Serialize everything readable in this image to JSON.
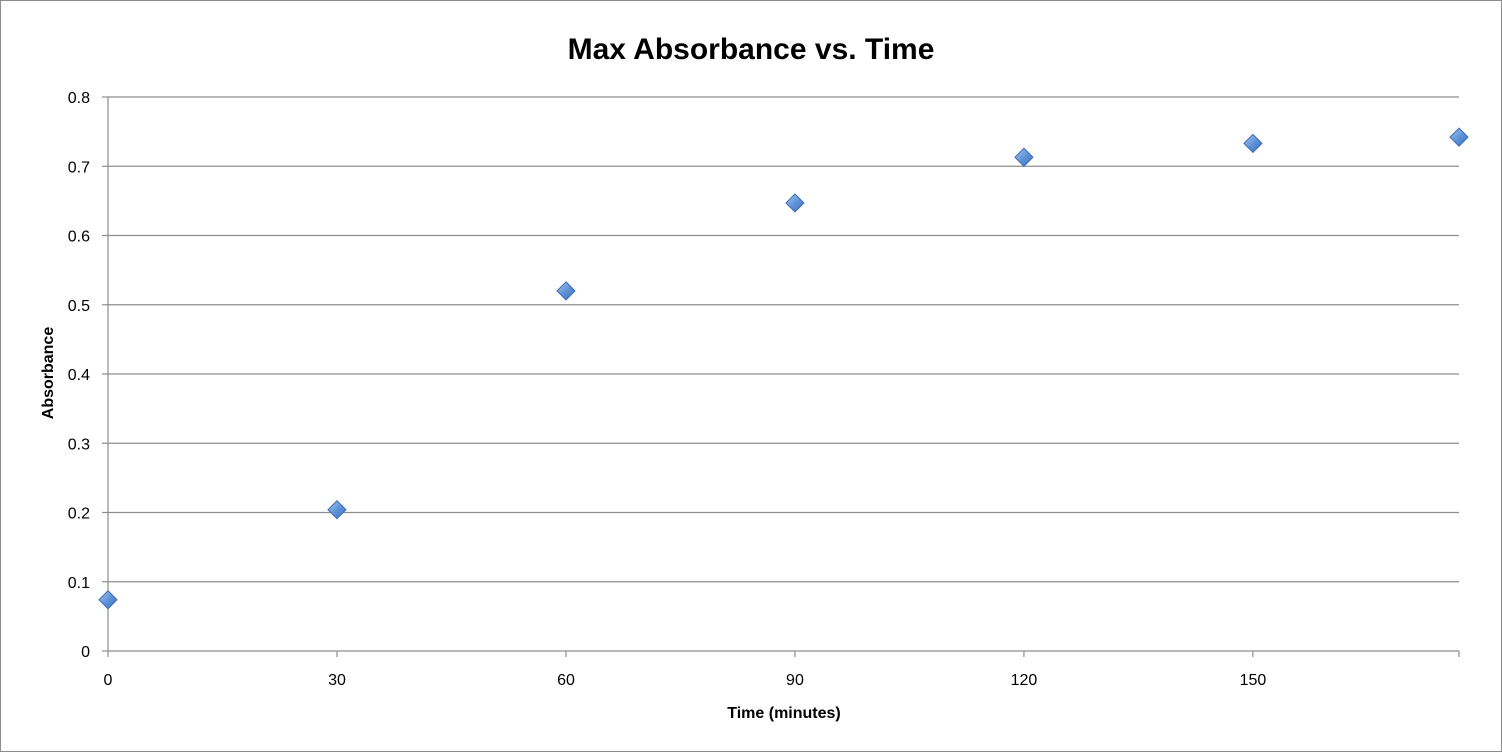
{
  "chart_data": {
    "type": "scatter",
    "title": "Max Absorbance vs. Time",
    "xlabel": "Time (minutes)",
    "ylabel": "Absorbance",
    "xlim": [
      0,
      177
    ],
    "ylim": [
      0,
      0.8
    ],
    "x_ticks": [
      0,
      30,
      60,
      90,
      120,
      150
    ],
    "x_tick_labels": [
      "0",
      "30",
      "60",
      "90",
      "120",
      "150"
    ],
    "y_ticks": [
      0,
      0.1,
      0.2,
      0.3,
      0.4,
      0.5,
      0.6,
      0.7,
      0.8
    ],
    "y_tick_labels": [
      "0",
      "0.1",
      "0.2",
      "0.3",
      "0.4",
      "0.5",
      "0.6",
      "0.7",
      "0.8"
    ],
    "grid": "horizontal",
    "legend": "none",
    "marker": "diamond",
    "marker_color": "#5b8fd6",
    "series": [
      {
        "x": [
          0,
          30,
          60,
          90,
          120,
          150,
          177
        ],
        "y": [
          0.074,
          0.204,
          0.52,
          0.647,
          0.713,
          0.733,
          0.742
        ]
      }
    ]
  }
}
